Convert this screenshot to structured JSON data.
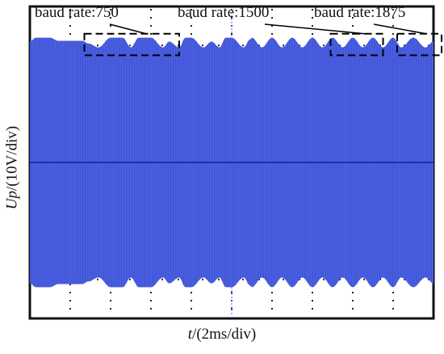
{
  "chart_data": {
    "type": "area",
    "title": "",
    "xlabel_var": "t",
    "xlabel_unit": "/(2ms/div)",
    "ylabel_var": "Up",
    "ylabel_unit": "/(10V/div)",
    "x_divisions": 10,
    "y_divisions": 8,
    "grid": true,
    "series": [
      {
        "color": "#4a5fe0",
        "x_div": [
          0.0,
          0.15,
          0.5,
          0.7,
          1.3,
          1.45,
          1.7,
          2.0,
          2.3,
          2.5,
          2.7,
          3.0,
          3.3,
          3.45,
          3.7,
          3.85,
          4.0,
          4.3,
          4.5,
          4.7,
          4.85,
          5.0,
          5.3,
          5.45,
          5.5,
          5.75,
          6.0,
          6.25,
          6.5,
          6.75,
          7.0,
          7.25,
          7.5,
          7.75,
          8.0,
          8.25,
          8.5,
          8.75,
          9.0,
          9.2,
          9.5,
          9.8,
          10.0
        ],
        "envelope_div": [
          3.1,
          3.2,
          3.2,
          3.12,
          3.12,
          3.05,
          2.95,
          3.2,
          3.2,
          2.95,
          3.2,
          3.2,
          2.95,
          3.1,
          2.95,
          3.2,
          3.2,
          2.95,
          3.1,
          2.95,
          3.2,
          3.2,
          2.95,
          3.15,
          3.2,
          2.95,
          3.2,
          2.95,
          3.2,
          2.95,
          3.2,
          2.95,
          3.2,
          2.95,
          3.2,
          2.95,
          3.2,
          2.95,
          3.2,
          2.95,
          3.2,
          2.95,
          3.1
        ]
      }
    ],
    "annotations": [
      {
        "text": "baud rate:750",
        "x_div": [
          1.35,
          3.7
        ],
        "y_div": [
          2.75,
          3.3
        ]
      },
      {
        "text": "baud rate:1500",
        "x_div": [
          7.45,
          8.75
        ],
        "y_div": [
          2.75,
          3.3
        ]
      },
      {
        "text": "baud rate:1875",
        "x_div": [
          9.1,
          10.2
        ],
        "y_div": [
          2.75,
          3.3
        ]
      }
    ]
  }
}
